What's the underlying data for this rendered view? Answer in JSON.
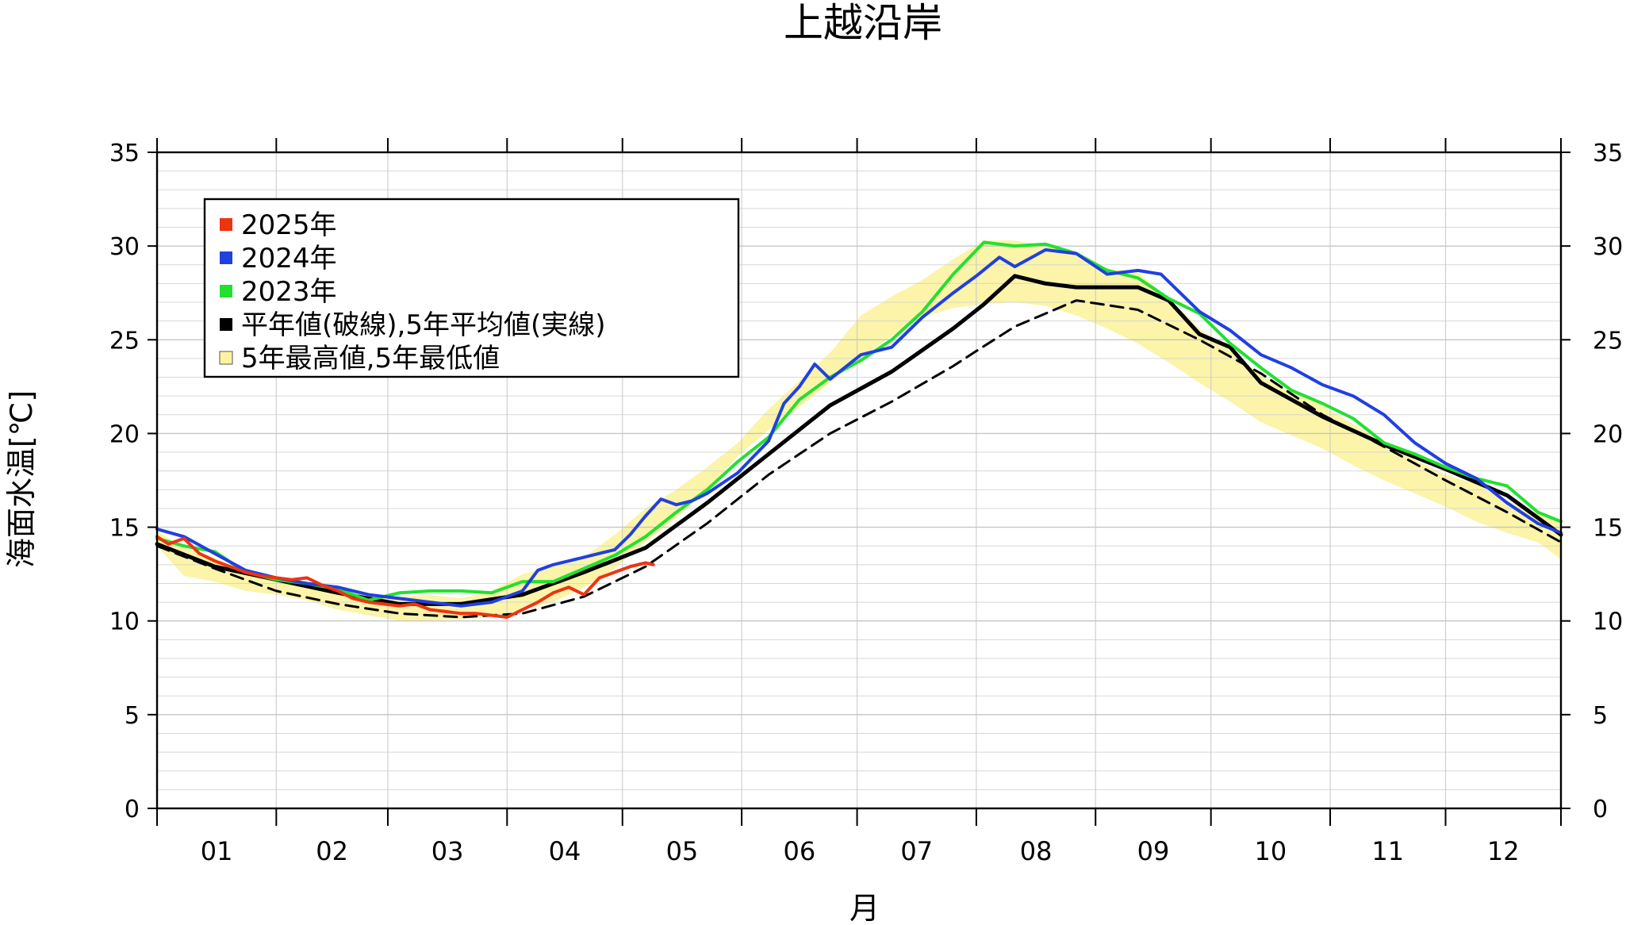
{
  "chart_data": {
    "type": "line",
    "title": "上越沿岸",
    "xlabel": "月",
    "ylabel": "海面水温[℃]",
    "ylim": [
      0,
      35
    ],
    "yticks": [
      0,
      5,
      10,
      15,
      20,
      25,
      30,
      35
    ],
    "x_unit": "day of year",
    "xlim": [
      1,
      366
    ],
    "months": [
      "01",
      "02",
      "03",
      "04",
      "05",
      "06",
      "07",
      "08",
      "09",
      "10",
      "11",
      "12"
    ],
    "month_start_days": [
      1,
      32,
      61,
      92,
      122,
      153,
      183,
      214,
      245,
      275,
      306,
      336,
      366
    ],
    "grid": true,
    "legend_position": "top-left",
    "legend": [
      {
        "label": "2025年",
        "color": "#ee3311"
      },
      {
        "label": "2024年",
        "color": "#2040e0"
      },
      {
        "label": "2023年",
        "color": "#22e030"
      },
      {
        "label": "平年値(破線),5年平均値(実線)",
        "color": "#000000"
      },
      {
        "label": "5年最高値,5年最低値",
        "color": "#fbf3a0"
      }
    ],
    "band": {
      "name": "5年最高値,5年最低値",
      "color": "#fbf3a0",
      "days": [
        1,
        8,
        16,
        24,
        32,
        40,
        48,
        56,
        64,
        72,
        80,
        88,
        96,
        104,
        112,
        120,
        128,
        136,
        144,
        152,
        160,
        168,
        176,
        184,
        192,
        200,
        208,
        216,
        224,
        232,
        240,
        248,
        256,
        264,
        272,
        280,
        288,
        296,
        304,
        312,
        320,
        328,
        336,
        344,
        352,
        360,
        366
      ],
      "upper": [
        14.8,
        13.9,
        13.4,
        12.6,
        12.2,
        12.1,
        11.8,
        11.3,
        11.3,
        11.4,
        11.2,
        11.6,
        12.5,
        12.9,
        13.4,
        14.6,
        16.0,
        17.0,
        18.2,
        19.5,
        21.3,
        22.8,
        24.3,
        26.3,
        27.3,
        28.2,
        29.3,
        30.3,
        30.3,
        30.0,
        29.5,
        28.8,
        28.6,
        27.2,
        25.6,
        24.4,
        23.1,
        22.2,
        21.5,
        20.5,
        19.5,
        18.6,
        17.8,
        17.3,
        16.4,
        15.7,
        15.4
      ],
      "lower": [
        14.0,
        12.4,
        12.1,
        11.6,
        11.4,
        11.1,
        10.6,
        10.3,
        10.0,
        10.0,
        10.1,
        10.2,
        10.6,
        11.0,
        11.8,
        12.8,
        14.2,
        15.5,
        17.0,
        18.8,
        20.2,
        21.4,
        22.7,
        24.0,
        25.2,
        26.2,
        26.7,
        26.9,
        27.0,
        26.8,
        26.3,
        25.6,
        24.8,
        23.8,
        22.7,
        21.7,
        20.6,
        19.9,
        19.2,
        18.3,
        17.5,
        16.8,
        16.1,
        15.3,
        14.7,
        14.2,
        13.3
      ]
    },
    "series": [
      {
        "name": "平年値",
        "color": "#000000",
        "style": "dashed",
        "days": [
          1,
          16,
          32,
          48,
          64,
          80,
          96,
          112,
          128,
          144,
          160,
          176,
          192,
          208,
          214,
          224,
          240,
          256,
          272,
          288,
          304,
          320,
          336,
          352,
          366
        ],
        "values": [
          14.0,
          12.8,
          11.6,
          10.9,
          10.4,
          10.2,
          10.4,
          11.3,
          12.9,
          15.2,
          17.8,
          20.0,
          21.7,
          23.6,
          24.4,
          25.7,
          27.1,
          26.6,
          25.0,
          23.2,
          21.0,
          19.3,
          17.5,
          15.8,
          14.2
        ]
      },
      {
        "name": "5年平均値",
        "color": "#000000",
        "style": "solid",
        "days": [
          1,
          16,
          32,
          48,
          64,
          80,
          96,
          112,
          128,
          144,
          160,
          176,
          192,
          208,
          216,
          224,
          232,
          240,
          256,
          264,
          272,
          280,
          288,
          304,
          320,
          336,
          352,
          366
        ],
        "values": [
          14.1,
          12.9,
          12.2,
          11.5,
          10.9,
          10.9,
          11.4,
          12.6,
          13.9,
          16.3,
          18.9,
          21.5,
          23.3,
          25.6,
          26.9,
          28.4,
          28.0,
          27.8,
          27.8,
          27.1,
          25.3,
          24.6,
          22.7,
          20.9,
          19.4,
          18.1,
          16.7,
          14.6
        ]
      },
      {
        "name": "2025年",
        "color": "#ee3311",
        "style": "solid",
        "days": [
          1,
          4,
          8,
          12,
          16,
          20,
          24,
          28,
          32,
          36,
          40,
          44,
          48,
          52,
          56,
          60,
          64,
          68,
          72,
          76,
          80,
          84,
          88,
          92,
          96,
          100,
          104,
          108,
          112,
          116,
          120,
          124,
          128,
          130
        ],
        "values": [
          14.5,
          14.1,
          14.4,
          13.6,
          13.2,
          12.9,
          12.6,
          12.4,
          12.3,
          12.2,
          12.3,
          11.9,
          11.6,
          11.2,
          11.0,
          10.9,
          10.8,
          10.9,
          10.6,
          10.5,
          10.4,
          10.4,
          10.3,
          10.2,
          10.6,
          11.0,
          11.5,
          11.8,
          11.4,
          12.3,
          12.6,
          12.9,
          13.1,
          13.0
        ]
      },
      {
        "name": "2024年",
        "color": "#2040e0",
        "style": "solid",
        "days": [
          1,
          8,
          16,
          24,
          32,
          40,
          48,
          56,
          64,
          72,
          80,
          88,
          96,
          100,
          104,
          112,
          120,
          124,
          128,
          132,
          136,
          140,
          144,
          152,
          160,
          164,
          168,
          172,
          176,
          184,
          192,
          200,
          208,
          214,
          220,
          224,
          232,
          240,
          248,
          256,
          262,
          272,
          280,
          288,
          296,
          304,
          312,
          320,
          328,
          336,
          344,
          352,
          360,
          366
        ],
        "values": [
          14.9,
          14.5,
          13.6,
          12.7,
          12.3,
          12.0,
          11.8,
          11.4,
          11.2,
          11.0,
          10.8,
          11.0,
          11.6,
          12.7,
          13.0,
          13.4,
          13.8,
          14.6,
          15.6,
          16.5,
          16.2,
          16.4,
          16.8,
          17.9,
          19.6,
          21.6,
          22.5,
          23.7,
          22.9,
          24.2,
          24.6,
          26.2,
          27.5,
          28.4,
          29.4,
          28.9,
          29.8,
          29.6,
          28.5,
          28.7,
          28.5,
          26.5,
          25.5,
          24.2,
          23.5,
          22.6,
          22.0,
          21.0,
          19.5,
          18.4,
          17.6,
          16.3,
          15.2,
          14.7
        ]
      },
      {
        "name": "2023年",
        "color": "#22e030",
        "style": "solid",
        "days": [
          1,
          8,
          16,
          24,
          32,
          40,
          48,
          56,
          64,
          72,
          80,
          88,
          96,
          104,
          112,
          120,
          128,
          136,
          144,
          152,
          160,
          168,
          176,
          184,
          192,
          200,
          208,
          216,
          224,
          232,
          240,
          248,
          256,
          264,
          272,
          280,
          288,
          296,
          304,
          312,
          320,
          328,
          336,
          344,
          352,
          360,
          366
        ],
        "values": [
          14.4,
          14.0,
          13.7,
          12.6,
          12.2,
          12.0,
          11.7,
          11.1,
          11.5,
          11.6,
          11.6,
          11.5,
          12.1,
          12.1,
          12.8,
          13.5,
          14.5,
          15.8,
          17.0,
          18.5,
          19.8,
          21.8,
          23.0,
          23.9,
          25.0,
          26.5,
          28.5,
          30.2,
          30.0,
          30.1,
          29.6,
          28.7,
          28.3,
          27.2,
          26.4,
          24.8,
          23.5,
          22.3,
          21.6,
          20.8,
          19.5,
          18.9,
          18.2,
          17.6,
          17.2,
          15.8,
          15.3
        ]
      }
    ]
  }
}
